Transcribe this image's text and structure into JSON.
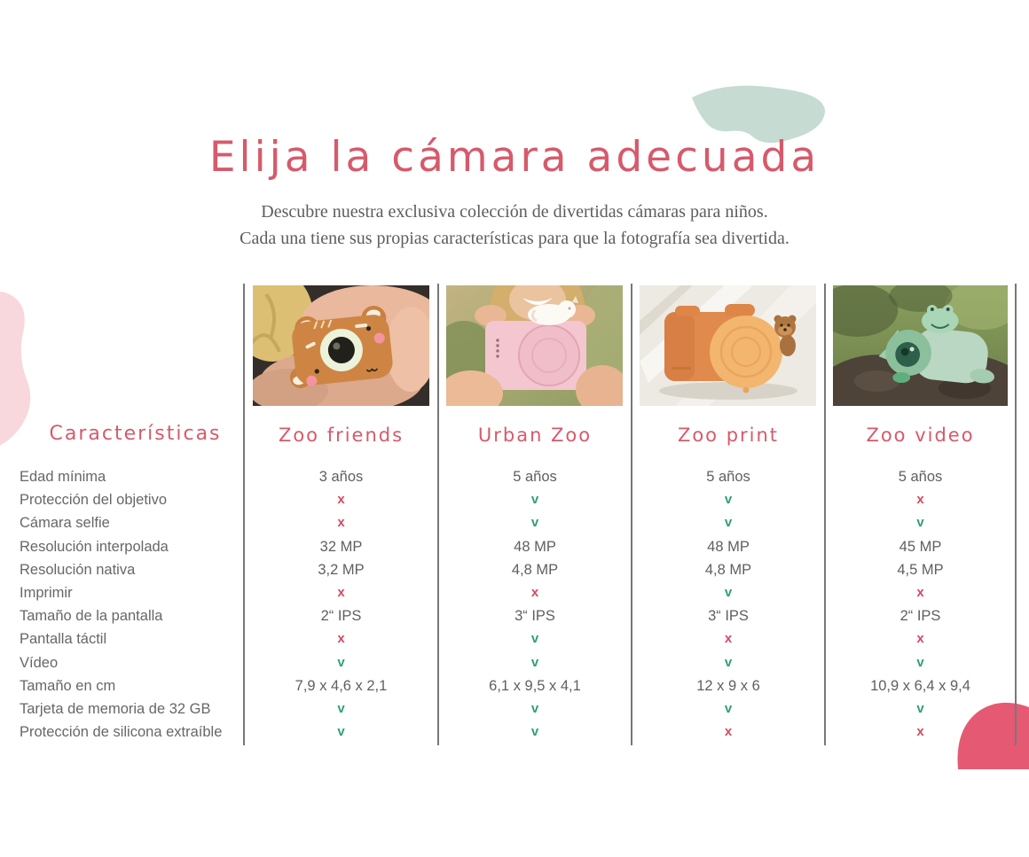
{
  "page": {
    "title": "Elija la cámara adecuada",
    "subtitle_line1": "Descubre nuestra exclusiva colección de divertidas cámaras para niños.",
    "subtitle_line2": "Cada una tiene sus propias características para que la fotografía sea divertida."
  },
  "table": {
    "features_header": "Características",
    "features": [
      "Edad mínima",
      "Protección del objetivo",
      "Cámara selfie",
      "Resolución interpolada",
      "Resolución nativa",
      "Imprimir",
      "Tamaño de la pantalla",
      "Pantalla táctil",
      "Vídeo",
      "Tamaño en cm",
      "Tarjeta de memoria de 32 GB",
      "Protección de silicona extraíble"
    ],
    "products": [
      {
        "name": "Zoo friends",
        "values": [
          "3 años",
          "x",
          "x",
          "32 MP",
          "3,2 MP",
          "x",
          "2“ IPS",
          "x",
          "v",
          "7,9 x 4,6 x 2,1",
          "v",
          "v"
        ]
      },
      {
        "name": "Urban Zoo",
        "values": [
          "5 años",
          "v",
          "v",
          "48 MP",
          "4,8 MP",
          "x",
          "3“ IPS",
          "v",
          "v",
          "6,1 x 9,5 x 4,1",
          "v",
          "v"
        ]
      },
      {
        "name": "Zoo print",
        "values": [
          "5 años",
          "v",
          "v",
          "48 MP",
          "4,8 MP",
          "v",
          "3“ IPS",
          "x",
          "v",
          "12 x 9 x 6",
          "v",
          "x"
        ]
      },
      {
        "name": "Zoo video",
        "values": [
          "5 años",
          "x",
          "v",
          "45 MP",
          "4,5 MP",
          "x",
          "2“ IPS",
          "x",
          "v",
          "10,9 x 6,4 x 9,4",
          "v",
          "x"
        ]
      }
    ],
    "value_legend": {
      "check_symbol": "v",
      "cross_symbol": "x"
    }
  },
  "colors": {
    "accent_pink": "#d65a6b",
    "text_gray": "#676767",
    "check_green": "#2f9e7d",
    "cross_red": "#d54a62",
    "divider_gray": "#787878",
    "blob_mint": "#c6dcd2",
    "blob_light_pink": "#f8d8dc",
    "blob_coral": "#e65972"
  }
}
